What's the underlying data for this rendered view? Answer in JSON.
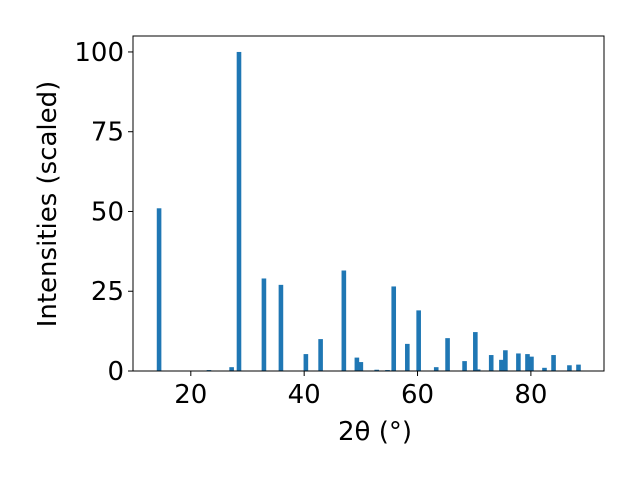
{
  "chart_data": {
    "type": "bar",
    "x_label": "2θ (°)",
    "y_label": "Intensities (scaled)",
    "x": [
      14.4,
      23.2,
      27.2,
      28.5,
      32.9,
      35.9,
      40.3,
      42.9,
      47.0,
      49.3,
      50.0,
      52.8,
      54.7,
      55.8,
      58.2,
      60.2,
      63.3,
      65.3,
      68.3,
      70.2,
      70.7,
      73.0,
      74.8,
      75.5,
      77.8,
      79.4,
      80.1,
      82.4,
      84.0,
      86.8,
      88.4
    ],
    "values": [
      51,
      0.3,
      1.2,
      100,
      29,
      27,
      5.3,
      10,
      31.5,
      4.2,
      2.8,
      0.4,
      0.3,
      26.5,
      8.5,
      19,
      1.2,
      10.3,
      3.1,
      12.2,
      0.5,
      5,
      3.5,
      6.5,
      5.5,
      5.3,
      4.5,
      1.0,
      5,
      1.8,
      2
    ],
    "color": "#1f77b4",
    "xlim": [
      9.8,
      92.9
    ],
    "xticks": [
      20,
      40,
      60,
      80
    ],
    "ylim": [
      0,
      105
    ],
    "yticks": [
      0,
      25,
      50,
      75,
      100
    ]
  }
}
